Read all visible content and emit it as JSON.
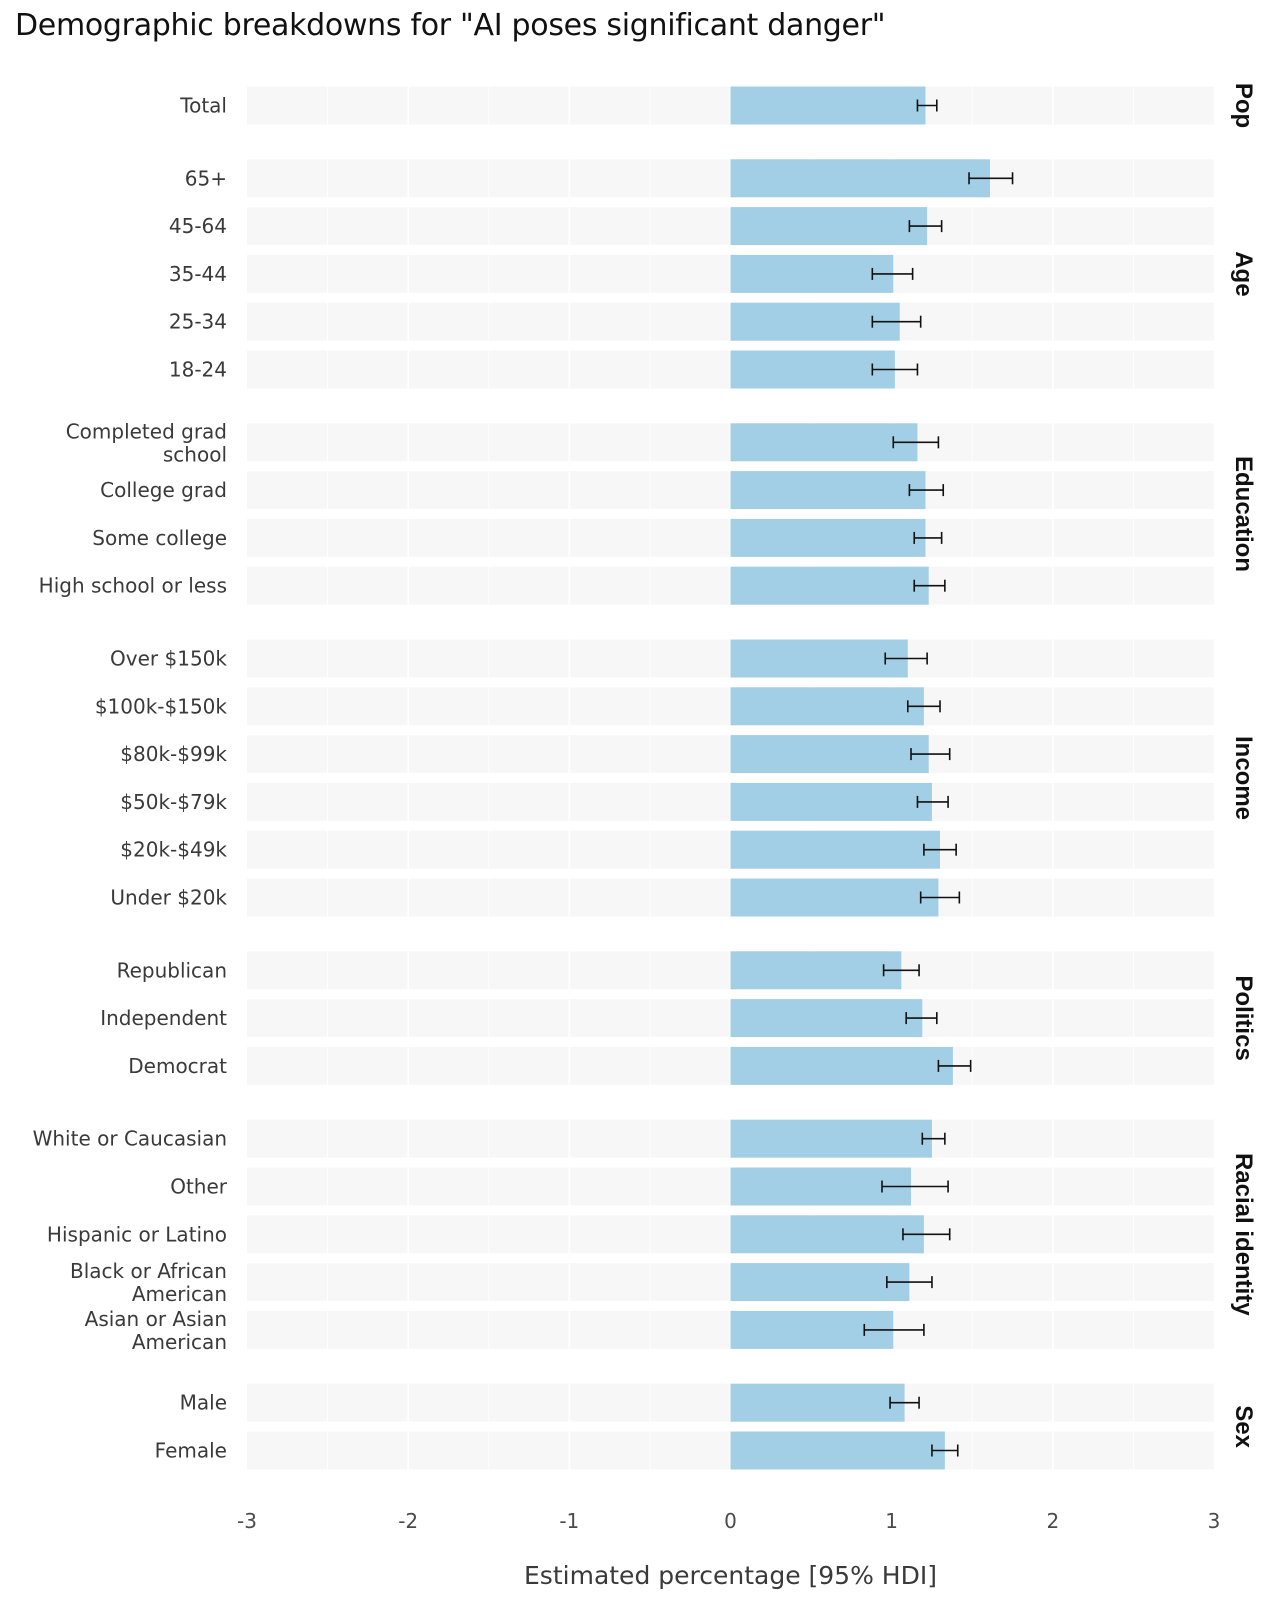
{
  "chart_data": {
    "type": "bar",
    "orientation": "horizontal",
    "title": "Demographic breakdowns for \"AI poses significant danger\"",
    "xlabel": "Estimated percentage [95% HDI]",
    "ylabel": "",
    "xlim": [
      -3,
      3
    ],
    "x_ticks": [
      "-3",
      "-2",
      "-1",
      "0",
      "1",
      "2",
      "3"
    ],
    "x_tick_values": [
      -3,
      -2,
      -1,
      0,
      1,
      2,
      3
    ],
    "grid": true,
    "error_bars": "95% HDI",
    "colors": {
      "bar": "#a3cfe6",
      "panel_bg": "#f7f7f7",
      "grid": "#ffffff",
      "error_bar": "#111111"
    },
    "facets": [
      {
        "name": "Pop",
        "rows": [
          {
            "label": "Total",
            "value": 1.21,
            "lower": 1.16,
            "upper": 1.28
          }
        ]
      },
      {
        "name": "Age",
        "rows": [
          {
            "label": "65+",
            "value": 1.61,
            "lower": 1.48,
            "upper": 1.75
          },
          {
            "label": "45-64",
            "value": 1.22,
            "lower": 1.11,
            "upper": 1.31
          },
          {
            "label": "35-44",
            "value": 1.01,
            "lower": 0.88,
            "upper": 1.13
          },
          {
            "label": "25-34",
            "value": 1.05,
            "lower": 0.88,
            "upper": 1.18
          },
          {
            "label": "18-24",
            "value": 1.02,
            "lower": 0.88,
            "upper": 1.16
          }
        ]
      },
      {
        "name": "Education",
        "rows": [
          {
            "label": "Completed grad school",
            "lines": [
              "Completed grad",
              "school"
            ],
            "value": 1.16,
            "lower": 1.01,
            "upper": 1.29
          },
          {
            "label": "College grad",
            "value": 1.21,
            "lower": 1.11,
            "upper": 1.32
          },
          {
            "label": "Some college",
            "value": 1.21,
            "lower": 1.14,
            "upper": 1.31
          },
          {
            "label": "High school or less",
            "value": 1.23,
            "lower": 1.14,
            "upper": 1.33
          }
        ]
      },
      {
        "name": "Income",
        "rows": [
          {
            "label": "Over $150k",
            "value": 1.1,
            "lower": 0.96,
            "upper": 1.22
          },
          {
            "label": "$100k-$150k",
            "value": 1.2,
            "lower": 1.1,
            "upper": 1.3
          },
          {
            "label": "$80k-$99k",
            "value": 1.23,
            "lower": 1.12,
            "upper": 1.36
          },
          {
            "label": "$50k-$79k",
            "value": 1.25,
            "lower": 1.16,
            "upper": 1.35
          },
          {
            "label": "$20k-$49k",
            "value": 1.3,
            "lower": 1.2,
            "upper": 1.4
          },
          {
            "label": "Under $20k",
            "value": 1.29,
            "lower": 1.18,
            "upper": 1.42
          }
        ]
      },
      {
        "name": "Politics",
        "rows": [
          {
            "label": "Republican",
            "value": 1.06,
            "lower": 0.95,
            "upper": 1.17
          },
          {
            "label": "Independent",
            "value": 1.19,
            "lower": 1.09,
            "upper": 1.28
          },
          {
            "label": "Democrat",
            "value": 1.38,
            "lower": 1.29,
            "upper": 1.49
          }
        ]
      },
      {
        "name": "Racial identity",
        "rows": [
          {
            "label": "White or Caucasian",
            "value": 1.25,
            "lower": 1.19,
            "upper": 1.33
          },
          {
            "label": "Other",
            "value": 1.12,
            "lower": 0.94,
            "upper": 1.35
          },
          {
            "label": "Hispanic or Latino",
            "value": 1.2,
            "lower": 1.07,
            "upper": 1.36
          },
          {
            "label": "Black or African American",
            "lines": [
              "Black or African",
              "American"
            ],
            "value": 1.11,
            "lower": 0.97,
            "upper": 1.25
          },
          {
            "label": "Asian or Asian American",
            "lines": [
              "Asian or Asian",
              "American"
            ],
            "value": 1.01,
            "lower": 0.83,
            "upper": 1.2
          }
        ]
      },
      {
        "name": "Sex",
        "rows": [
          {
            "label": "Male",
            "value": 1.08,
            "lower": 0.99,
            "upper": 1.17
          },
          {
            "label": "Female",
            "value": 1.33,
            "lower": 1.25,
            "upper": 1.41
          }
        ]
      }
    ]
  }
}
